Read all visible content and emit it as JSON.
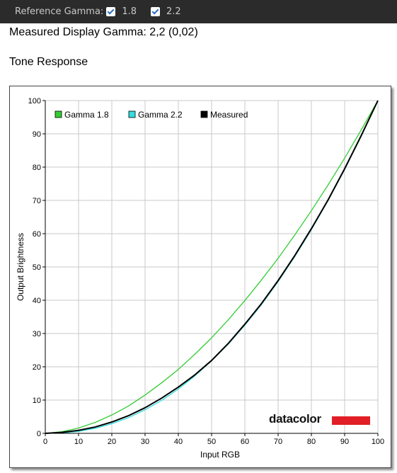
{
  "toolbar": {
    "reference_label": "Reference Gamma:",
    "options": [
      {
        "label": "1.8",
        "checked": true
      },
      {
        "label": "2.2",
        "checked": true
      }
    ],
    "checkbox_color": "#2a6fc9"
  },
  "measured_text": "Measured Display Gamma: 2,2 (0,02)",
  "section_title": "Tone Response",
  "logo_text": "datacolor",
  "logo_bar_color": "#e21e26",
  "chart_data": {
    "type": "line",
    "xlabel": "Input RGB",
    "ylabel": "Output Brightness",
    "xlim": [
      0,
      100
    ],
    "ylim": [
      0,
      100
    ],
    "x_ticks": [
      0,
      10,
      20,
      30,
      40,
      50,
      60,
      70,
      80,
      90,
      100
    ],
    "y_ticks": [
      0,
      10,
      20,
      30,
      40,
      50,
      60,
      70,
      80,
      90,
      100
    ],
    "grid": true,
    "legend_position": "top-left",
    "series": [
      {
        "name": "Gamma 1.8",
        "color": "#33cc33",
        "x": [
          0,
          5,
          10,
          15,
          20,
          25,
          30,
          35,
          40,
          45,
          50,
          55,
          60,
          65,
          70,
          75,
          80,
          85,
          90,
          95,
          100
        ],
        "y": [
          0,
          0.5,
          1.6,
          3.3,
          5.5,
          8.2,
          11.5,
          15.2,
          19.2,
          23.8,
          28.7,
          34.1,
          39.9,
          46.1,
          52.6,
          59.6,
          66.9,
          74.6,
          82.7,
          91.2,
          100
        ]
      },
      {
        "name": "Gamma 2.2",
        "color": "#33dddd",
        "x": [
          0,
          5,
          10,
          15,
          20,
          25,
          30,
          35,
          40,
          45,
          50,
          55,
          60,
          65,
          70,
          75,
          80,
          85,
          90,
          95,
          100
        ],
        "y": [
          0,
          0.1,
          0.6,
          1.5,
          2.9,
          4.7,
          7.1,
          9.9,
          13.3,
          17.3,
          21.8,
          26.8,
          32.5,
          38.7,
          45.6,
          53.1,
          61.2,
          69.9,
          79.3,
          89.3,
          100
        ]
      },
      {
        "name": "Measured",
        "color": "#000000",
        "x": [
          0,
          5,
          10,
          15,
          20,
          25,
          30,
          35,
          40,
          45,
          50,
          55,
          60,
          65,
          70,
          75,
          80,
          85,
          90,
          95,
          100
        ],
        "y": [
          0,
          0.3,
          0.9,
          1.9,
          3.4,
          5.3,
          7.7,
          10.6,
          13.9,
          17.6,
          21.9,
          27.0,
          32.8,
          39.0,
          45.9,
          53.4,
          61.5,
          70.1,
          79.5,
          89.5,
          100
        ]
      }
    ]
  }
}
